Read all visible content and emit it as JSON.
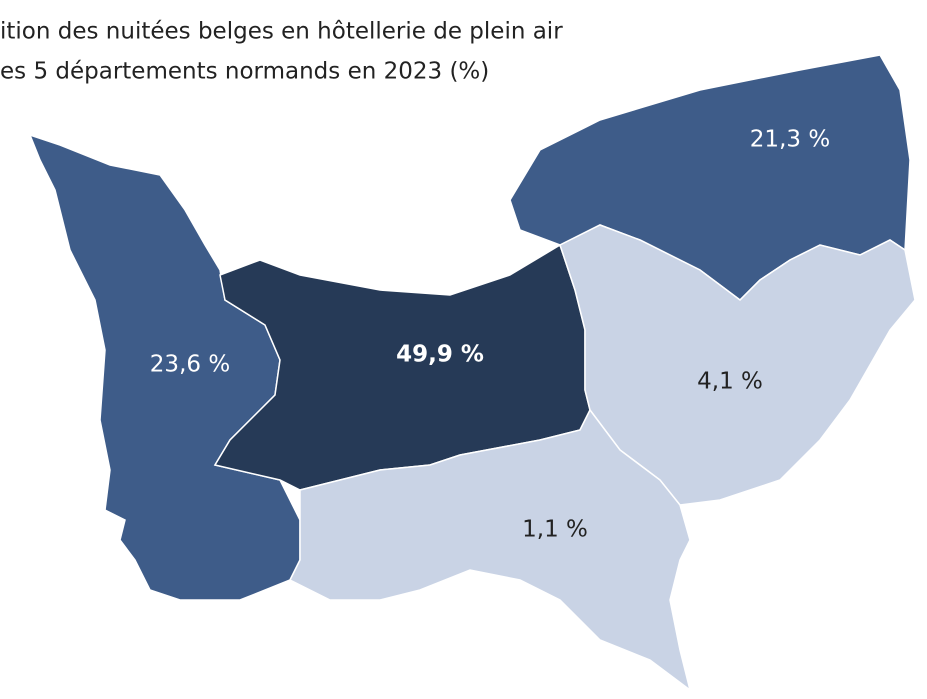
{
  "chart_data": {
    "type": "map",
    "title": [
      "ition des nuitées belges en hôtellerie de plein air",
      "es 5 départements normands en 2023 (%)"
    ],
    "values": [
      23.6,
      49.9,
      21.3,
      4.1,
      1.1
    ],
    "value_labels": [
      "23,6 %",
      "49,9 %",
      "21,3 %",
      "4,1 %",
      "1,1 %"
    ],
    "colors": [
      "#3e5c89",
      "#263a57",
      "#3e5c89",
      "#c9d3e5",
      "#c9d3e5"
    ]
  }
}
